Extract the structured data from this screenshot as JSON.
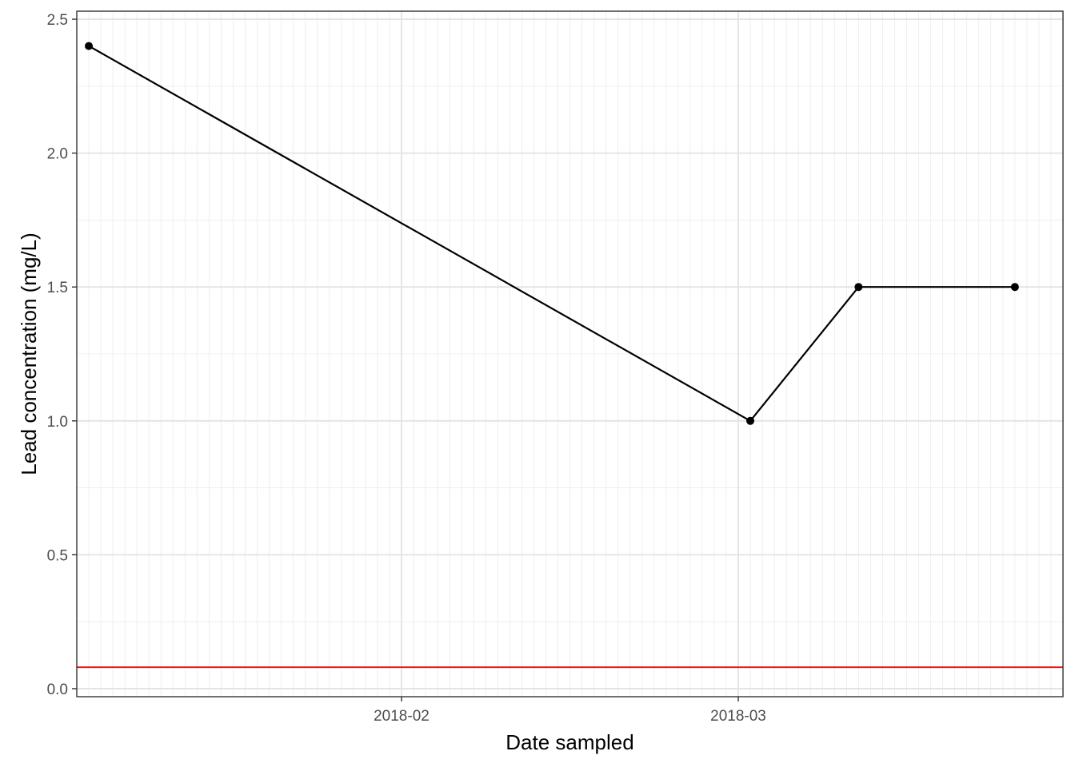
{
  "chart_data": {
    "type": "line",
    "title": "",
    "xlabel": "Date sampled",
    "ylabel": "Lead concentration (mg/L)",
    "x_type": "date",
    "xlim": [
      "2018-01-05",
      "2018-03-28"
    ],
    "ylim": [
      -0.03,
      2.53
    ],
    "x_ticks": [
      "2018-02-01",
      "2018-03-01"
    ],
    "x_tick_labels": [
      "2018-02",
      "2018-03"
    ],
    "y_ticks": [
      0.0,
      0.5,
      1.0,
      1.5,
      2.0,
      2.5
    ],
    "y_tick_labels": [
      "0.0",
      "0.5",
      "1.0",
      "1.5",
      "2.0",
      "2.5"
    ],
    "grid": true,
    "series": [
      {
        "x": [
          "2018-01-06",
          "2018-03-02",
          "2018-03-11",
          "2018-03-24"
        ],
        "y": [
          2.4,
          1.0,
          1.5,
          1.5
        ],
        "color": "#000000",
        "markers": true
      }
    ],
    "reference_lines": [
      {
        "axis": "y",
        "value": 0.08,
        "color": "#e31a1c"
      }
    ]
  }
}
